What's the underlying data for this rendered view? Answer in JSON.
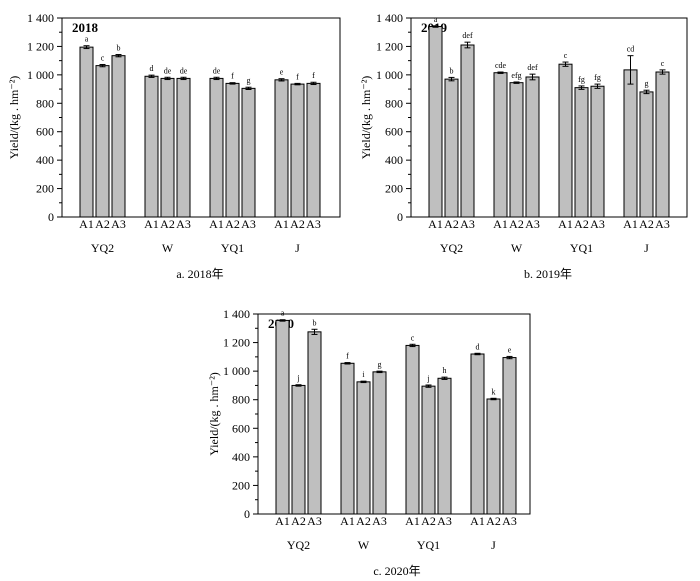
{
  "chart_data": [
    {
      "type": "bar",
      "title": "2018",
      "caption": "a.  2018年",
      "ylabel": "Yield/(kg . hm⁻²)",
      "ylim": [
        0,
        1400
      ],
      "yticks": [
        0,
        200,
        400,
        600,
        800,
        1000,
        1200,
        1400
      ],
      "ytick_labels": [
        "0",
        "200",
        "400",
        "600",
        "800",
        "1 000",
        "1 200",
        "1 400"
      ],
      "groups": [
        "YQ2",
        "W",
        "YQ1",
        "J"
      ],
      "subcategories": [
        "A1",
        "A2",
        "A3"
      ],
      "values": [
        [
          1195,
          1065,
          1135
        ],
        [
          990,
          975,
          975
        ],
        [
          975,
          940,
          905
        ],
        [
          965,
          935,
          940
        ]
      ],
      "errors": [
        [
          10,
          8,
          8
        ],
        [
          8,
          8,
          8
        ],
        [
          8,
          5,
          8
        ],
        [
          8,
          5,
          8
        ]
      ],
      "letters": [
        [
          "a",
          "c",
          "b"
        ],
        [
          "d",
          "de",
          "de"
        ],
        [
          "de",
          "f",
          "g"
        ],
        [
          "e",
          "f",
          "f"
        ]
      ]
    },
    {
      "type": "bar",
      "title": "2019",
      "caption": "b.  2019年",
      "ylabel": "Yield/(kg . hm⁻²)",
      "ylim": [
        0,
        1400
      ],
      "yticks": [
        0,
        200,
        400,
        600,
        800,
        1000,
        1200,
        1400
      ],
      "ytick_labels": [
        "0",
        "200",
        "400",
        "600",
        "800",
        "1 000",
        "1 200",
        "1 400"
      ],
      "groups": [
        "YQ2",
        "W",
        "YQ1",
        "J"
      ],
      "subcategories": [
        "A1",
        "A2",
        "A3"
      ],
      "values": [
        [
          1340,
          970,
          1210
        ],
        [
          1015,
          945,
          985
        ],
        [
          1075,
          910,
          920
        ],
        [
          1035,
          880,
          1020
        ]
      ],
      "errors": [
        [
          5,
          12,
          20
        ],
        [
          5,
          5,
          20
        ],
        [
          15,
          12,
          15
        ],
        [
          100,
          12,
          15
        ]
      ],
      "letters": [
        [
          "a",
          "b",
          "def"
        ],
        [
          "cde",
          "efg",
          "def"
        ],
        [
          "c",
          "fg",
          "fg"
        ],
        [
          "cd",
          "g",
          "c"
        ]
      ]
    },
    {
      "type": "bar",
      "title": "2020",
      "caption": "c.  2020年",
      "ylabel": "Yield/(kg . hm⁻²)",
      "ylim": [
        0,
        1400
      ],
      "yticks": [
        0,
        200,
        400,
        600,
        800,
        1000,
        1200,
        1400
      ],
      "ytick_labels": [
        "0",
        "200",
        "400",
        "600",
        "800",
        "1 000",
        "1 200",
        "1 400"
      ],
      "groups": [
        "YQ2",
        "W",
        "YQ1",
        "J"
      ],
      "subcategories": [
        "A1",
        "A2",
        "A3"
      ],
      "values": [
        [
          1355,
          900,
          1275
        ],
        [
          1055,
          925,
          995
        ],
        [
          1180,
          895,
          950
        ],
        [
          1120,
          805,
          1095
        ]
      ],
      "errors": [
        [
          5,
          5,
          18
        ],
        [
          5,
          5,
          5
        ],
        [
          8,
          8,
          8
        ],
        [
          5,
          5,
          8
        ]
      ],
      "letters": [
        [
          "a",
          "j",
          "b"
        ],
        [
          "f",
          "i",
          "g"
        ],
        [
          "c",
          "j",
          "h"
        ],
        [
          "d",
          "k",
          "e"
        ]
      ]
    }
  ]
}
